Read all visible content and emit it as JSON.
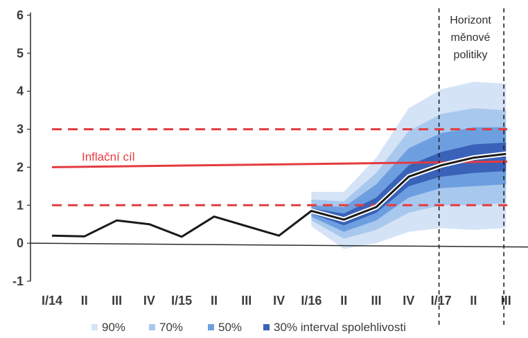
{
  "chart_data": {
    "type": "line",
    "title": "",
    "xlabel": "",
    "ylabel": "",
    "ylim": [
      -1,
      6
    ],
    "y_ticks": [
      "-1",
      "0",
      "1",
      "2",
      "3",
      "4",
      "5",
      "6"
    ],
    "categories": [
      "I/14",
      "II",
      "III",
      "IV",
      "I/15",
      "II",
      "III",
      "IV",
      "I/16",
      "II",
      "III",
      "IV",
      "I/17",
      "II",
      "III"
    ],
    "series": [
      {
        "name": "",
        "values": [
          0.2,
          0.18,
          0.6,
          0.5,
          0.17,
          0.7,
          0.45,
          0.2,
          0.85,
          0.62,
          0.95,
          1.75,
          2.05,
          2.25,
          2.35
        ]
      }
    ],
    "target_line": {
      "label": "Inflační cíl",
      "value": 2.0,
      "end_value": 2.15
    },
    "tolerance_band": [
      1.0,
      3.0
    ],
    "fan_chart": {
      "x_start_index": 8,
      "x_indices": [
        8,
        9,
        10,
        11,
        12,
        13,
        14
      ],
      "median": [
        0.85,
        0.62,
        0.95,
        1.75,
        2.05,
        2.25,
        2.35
      ],
      "bands": [
        {
          "name": "90%",
          "color": "#d5e3f6",
          "lower": [
            0.45,
            -0.15,
            0.0,
            0.3,
            0.4,
            0.35,
            0.4
          ],
          "upper": [
            1.35,
            1.35,
            2.25,
            3.55,
            4.05,
            4.25,
            4.2
          ]
        },
        {
          "name": "70%",
          "color": "#a9c8ee",
          "lower": [
            0.6,
            0.12,
            0.35,
            0.8,
            1.0,
            1.0,
            1.05
          ],
          "upper": [
            1.15,
            1.1,
            1.85,
            2.95,
            3.4,
            3.55,
            3.5
          ]
        },
        {
          "name": "50%",
          "color": "#6d9fe0",
          "lower": [
            0.7,
            0.3,
            0.6,
            1.2,
            1.45,
            1.5,
            1.55
          ],
          "upper": [
            1.0,
            0.95,
            1.55,
            2.5,
            2.9,
            3.05,
            3.05
          ]
        },
        {
          "name": "30% interval spolehlivosti",
          "color": "#3a62b8",
          "lower": [
            0.78,
            0.47,
            0.8,
            1.5,
            1.75,
            1.85,
            1.9
          ],
          "upper": [
            0.92,
            0.78,
            1.2,
            2.05,
            2.4,
            2.6,
            2.65
          ]
        }
      ]
    },
    "horizon": {
      "label_lines": [
        "Horizont",
        "měnové",
        "politiky"
      ],
      "x_indices": [
        12,
        14
      ]
    },
    "legend": [
      "90%",
      "70%",
      "50%",
      "30% interval spolehlivosti"
    ],
    "legend_position": "bottom",
    "grid": false
  },
  "colors": {
    "target_red": "#e53a3f",
    "band_red": "#e53a3f",
    "median_line": "#1a1a1a",
    "median_halo": "#ffffff",
    "axis": "#2a2a2a",
    "text": "#3c3c3c"
  }
}
